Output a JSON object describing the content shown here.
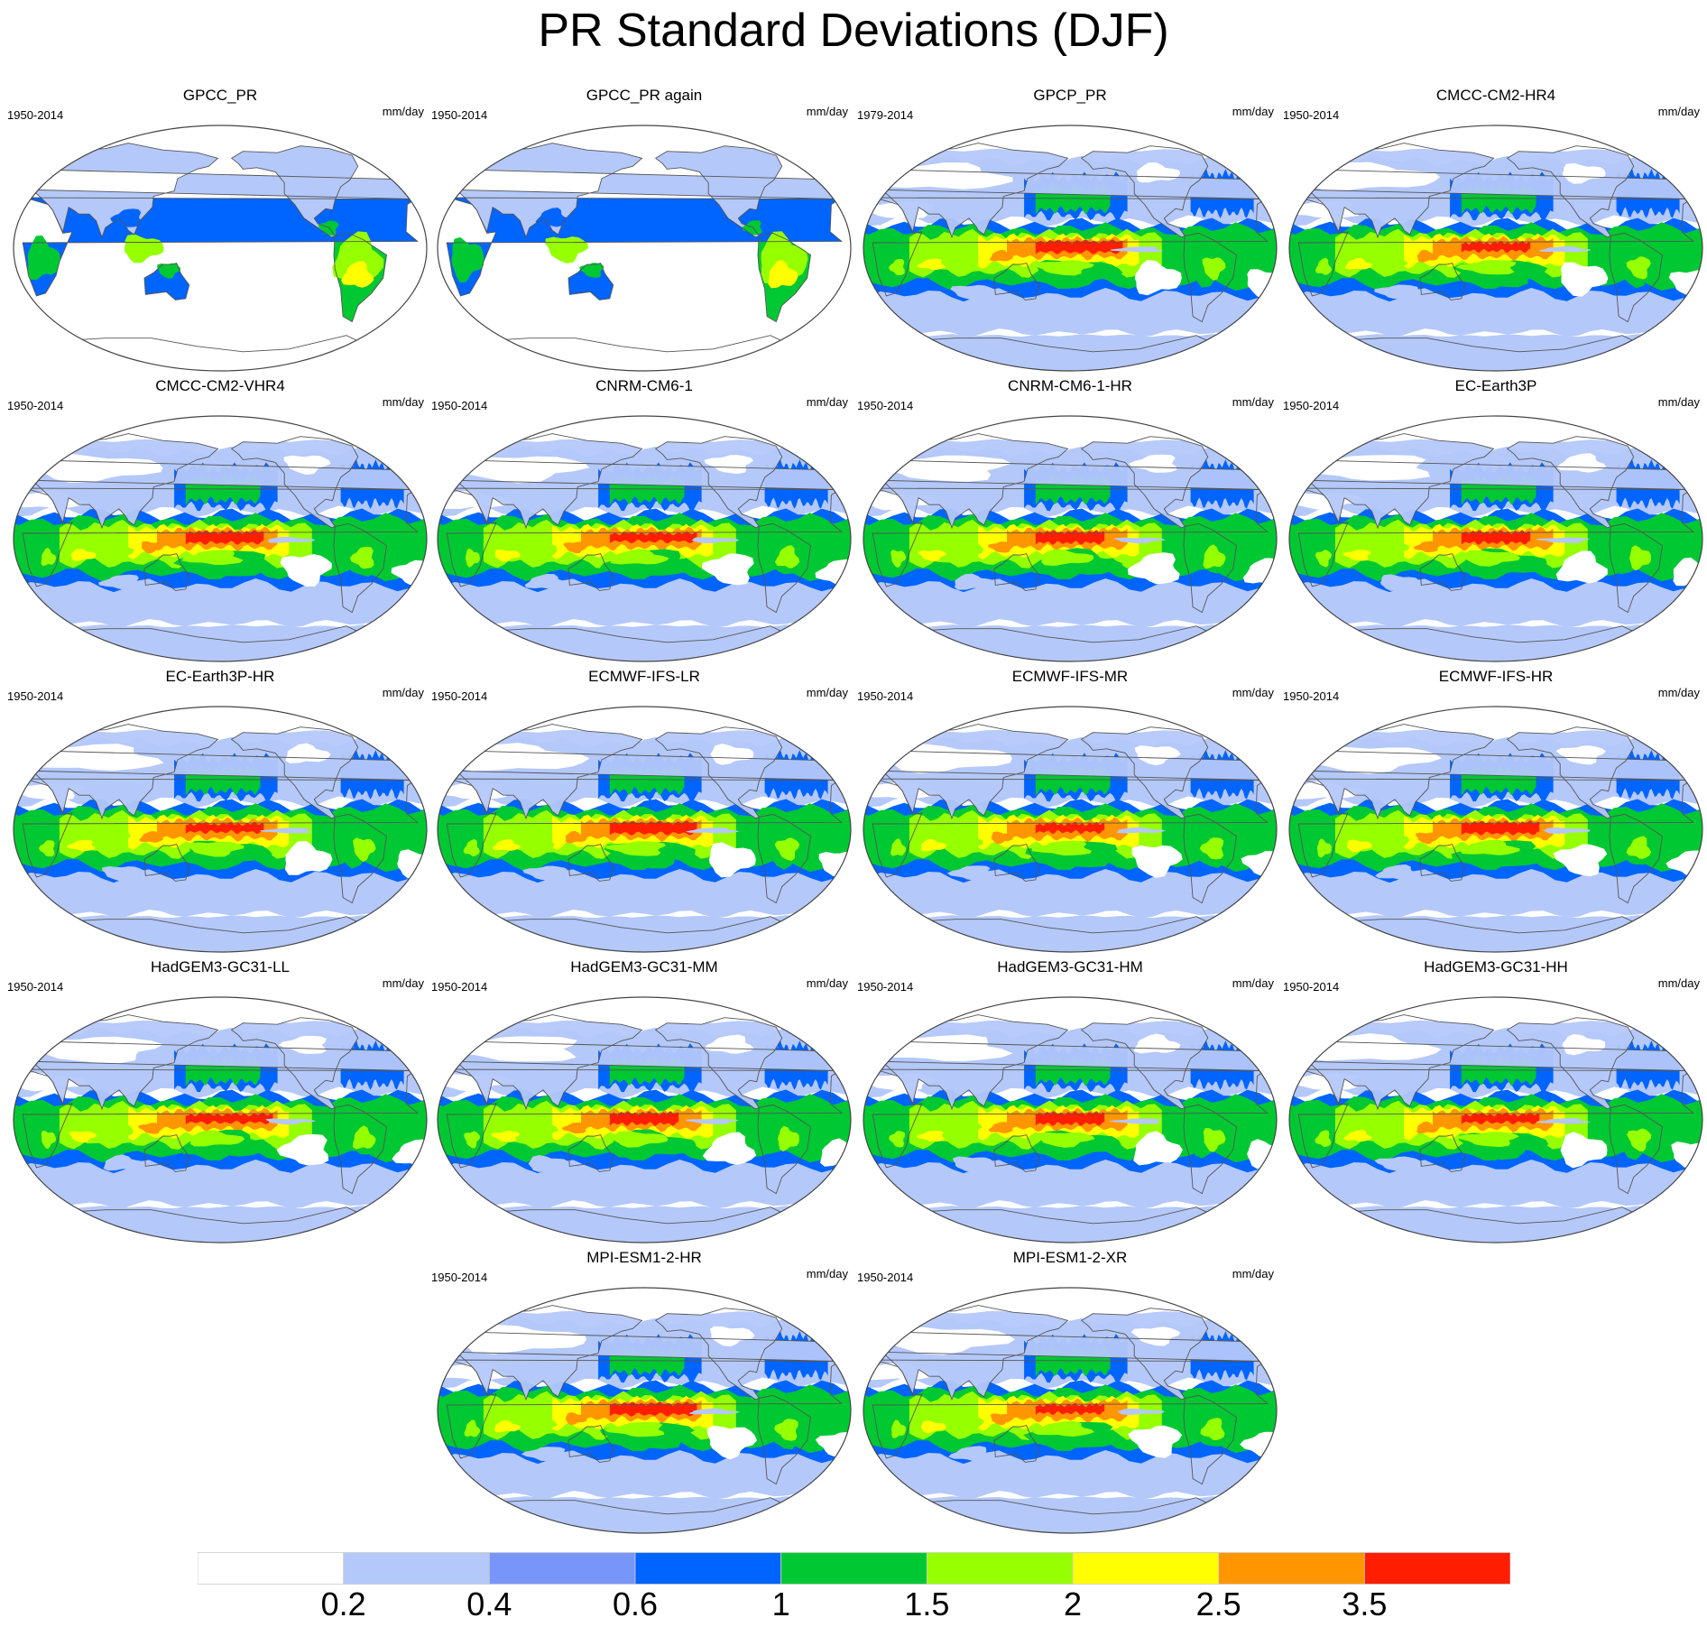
{
  "title": "PR Standard Deviations (DJF)",
  "panels": [
    {
      "name": "GPCC_PR",
      "period": "1950-2014",
      "units": "mm/day",
      "variant": "land"
    },
    {
      "name": "GPCC_PR again",
      "period": "1950-2014",
      "units": "mm/day",
      "variant": "land"
    },
    {
      "name": "GPCP_PR",
      "period": "1979-2014",
      "units": "mm/day",
      "variant": "obs"
    },
    {
      "name": "CMCC-CM2-HR4",
      "period": "1950-2014",
      "units": "mm/day",
      "variant": "model"
    },
    {
      "name": "CMCC-CM2-VHR4",
      "period": "1950-2014",
      "units": "mm/day",
      "variant": "model"
    },
    {
      "name": "CNRM-CM6-1",
      "period": "1950-2014",
      "units": "mm/day",
      "variant": "model"
    },
    {
      "name": "CNRM-CM6-1-HR",
      "period": "1950-2014",
      "units": "mm/day",
      "variant": "model"
    },
    {
      "name": "EC-Earth3P",
      "period": "1950-2014",
      "units": "mm/day",
      "variant": "model"
    },
    {
      "name": "EC-Earth3P-HR",
      "period": "1950-2014",
      "units": "mm/day",
      "variant": "model"
    },
    {
      "name": "ECMWF-IFS-LR",
      "period": "1950-2014",
      "units": "mm/day",
      "variant": "model"
    },
    {
      "name": "ECMWF-IFS-MR",
      "period": "1950-2014",
      "units": "mm/day",
      "variant": "model"
    },
    {
      "name": "ECMWF-IFS-HR",
      "period": "1950-2014",
      "units": "mm/day",
      "variant": "model"
    },
    {
      "name": "HadGEM3-GC31-LL",
      "period": "1950-2014",
      "units": "mm/day",
      "variant": "model"
    },
    {
      "name": "HadGEM3-GC31-MM",
      "period": "1950-2014",
      "units": "mm/day",
      "variant": "model"
    },
    {
      "name": "HadGEM3-GC31-HM",
      "period": "1950-2014",
      "units": "mm/day",
      "variant": "model"
    },
    {
      "name": "HadGEM3-GC31-HH",
      "period": "1950-2014",
      "units": "mm/day",
      "variant": "model"
    },
    {
      "name": "MPI-ESM1-2-HR",
      "period": "1950-2014",
      "units": "mm/day",
      "variant": "model"
    },
    {
      "name": "MPI-ESM1-2-XR",
      "period": "1950-2014",
      "units": "mm/day",
      "variant": "model"
    }
  ],
  "colorbar": {
    "colors": [
      "#ffffff",
      "#b4c8fa",
      "#7896fa",
      "#0064ff",
      "#00c832",
      "#96ff00",
      "#ffff00",
      "#ff9600",
      "#ff1e00"
    ],
    "labels": [
      "0.2",
      "0.4",
      "0.6",
      "1",
      "1.5",
      "2",
      "2.5",
      "3.5"
    ]
  },
  "colors": {
    "coastline": "#555555",
    "map_border": "#444444"
  }
}
